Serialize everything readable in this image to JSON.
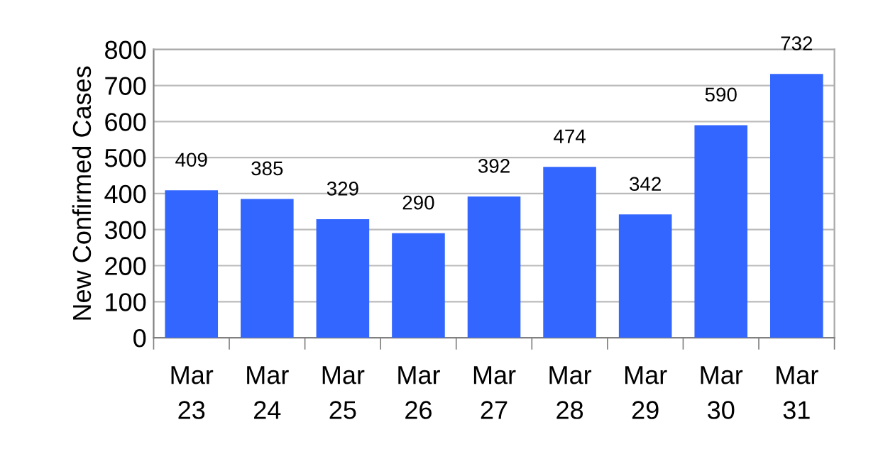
{
  "chart_data": {
    "type": "bar",
    "ylabel": "New Confirmed Cases",
    "categories": [
      "Mar 23",
      "Mar 24",
      "Mar 25",
      "Mar 26",
      "Mar 27",
      "Mar 28",
      "Mar 29",
      "Mar 30",
      "Mar 31"
    ],
    "values": [
      409,
      385,
      329,
      290,
      392,
      474,
      342,
      590,
      732
    ],
    "color": "#3366ff",
    "ylim": [
      0,
      800
    ],
    "yticks": [
      0,
      100,
      200,
      300,
      400,
      500,
      600,
      700,
      800
    ],
    "grid": "y",
    "data_labels": true
  }
}
